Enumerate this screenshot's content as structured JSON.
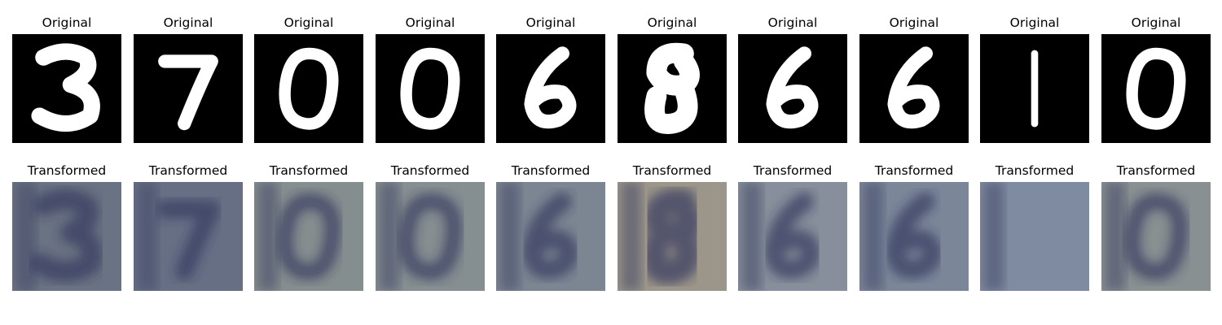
{
  "figure": {
    "panels": [
      {
        "digit": "3",
        "original_title": "Original",
        "transformed_title": "Transformed",
        "transformed_tint": "#5a6478"
      },
      {
        "digit": "7",
        "original_title": "Original",
        "transformed_title": "Transformed",
        "transformed_tint": "#56607a"
      },
      {
        "digit": "0",
        "original_title": "Original",
        "transformed_title": "Transformed",
        "transformed_tint": "#7a8486"
      },
      {
        "digit": "0",
        "original_title": "Original",
        "transformed_title": "Transformed",
        "transformed_tint": "#7a8488"
      },
      {
        "digit": "6",
        "original_title": "Original",
        "transformed_title": "Transformed",
        "transformed_tint": "#6f7a8a"
      },
      {
        "digit": "8",
        "original_title": "Original",
        "transformed_title": "Transformed",
        "transformed_tint": "#948c80"
      },
      {
        "digit": "6",
        "original_title": "Original",
        "transformed_title": "Transformed",
        "transformed_tint": "#7b8594"
      },
      {
        "digit": "6",
        "original_title": "Original",
        "transformed_title": "Transformed",
        "transformed_tint": "#6e7b92"
      },
      {
        "digit": "1",
        "original_title": "Original",
        "transformed_title": "Transformed",
        "transformed_tint": "#73809a"
      },
      {
        "digit": "0",
        "original_title": "Original",
        "transformed_title": "Transformed",
        "transformed_tint": "#7e8689"
      }
    ]
  }
}
